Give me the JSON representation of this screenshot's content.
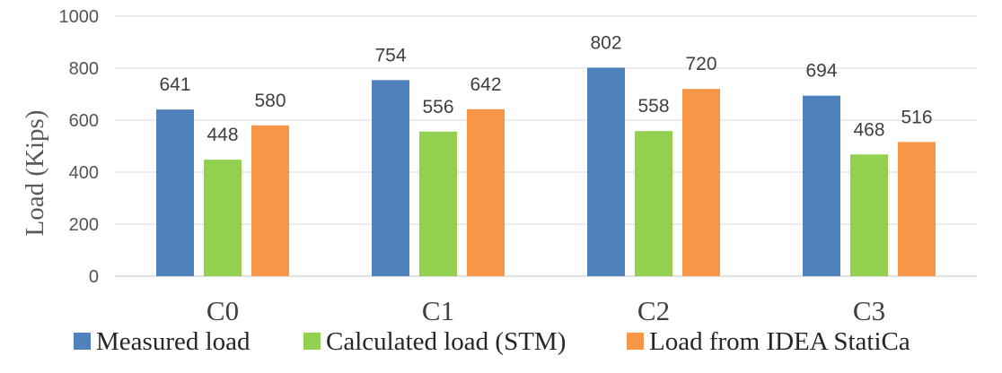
{
  "chart_data": {
    "type": "bar",
    "title": "",
    "xlabel": "",
    "ylabel": "Load (Kips)",
    "ylim": [
      0,
      1000
    ],
    "yticks": [
      0,
      200,
      400,
      600,
      800,
      1000
    ],
    "grid": true,
    "legend_position": "bottom",
    "categories": [
      "C0",
      "C1",
      "C2",
      "C3"
    ],
    "series": [
      {
        "name": "Measured load",
        "color": "#4f81bd",
        "values": [
          641,
          754,
          802,
          694
        ]
      },
      {
        "name": "Calculated load (STM)",
        "color": "#92d050",
        "values": [
          448,
          556,
          558,
          468
        ]
      },
      {
        "name": "Load from IDEA StatiCa",
        "color": "#f79646",
        "values": [
          580,
          642,
          720,
          516
        ]
      }
    ],
    "legend_label_3": "Load from IDEA StatiCa"
  }
}
